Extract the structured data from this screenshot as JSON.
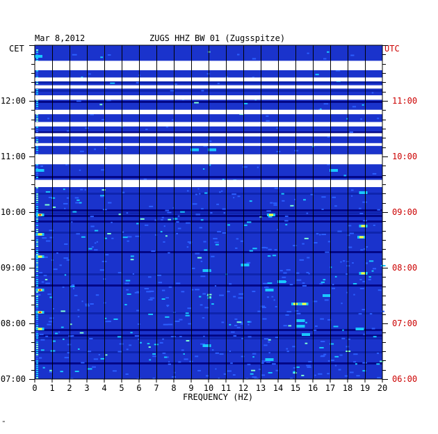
{
  "header": {
    "date": "Mar 8,2012",
    "station": "ZUGS HHZ BW 01 (Zugsspitze)"
  },
  "footer_mark": "\"",
  "chart_data": {
    "type": "heatmap",
    "title": "ZUGS HHZ BW 01 (Zugsspitze)",
    "subtitle": "Mar 8,2012",
    "xlabel": "FREQUENCY (HZ)",
    "left_axis_label": "CET",
    "right_axis_label": "UTC",
    "xlim": [
      0,
      20
    ],
    "x_ticks": [
      "0",
      "1",
      "2",
      "3",
      "4",
      "5",
      "6",
      "7",
      "8",
      "9",
      "10",
      "11",
      "12",
      "13",
      "14",
      "15",
      "16",
      "17",
      "18",
      "19",
      "20"
    ],
    "time_range_cet_hours": [
      7.0,
      13.0
    ],
    "cet_ticks": [
      {
        "t": 7,
        "label": "07:00"
      },
      {
        "t": 8,
        "label": "08:00"
      },
      {
        "t": 9,
        "label": "09:00"
      },
      {
        "t": 10,
        "label": "10:00"
      },
      {
        "t": 11,
        "label": "11:00"
      },
      {
        "t": 12,
        "label": "12:00"
      }
    ],
    "utc_ticks": [
      {
        "t": 7,
        "label": "06:00"
      },
      {
        "t": 8,
        "label": "07:00"
      },
      {
        "t": 9,
        "label": "08:00"
      },
      {
        "t": 10,
        "label": "09:00"
      },
      {
        "t": 11,
        "label": "10:00"
      },
      {
        "t": 12,
        "label": "11:00"
      }
    ],
    "data_gaps_cet_hours": [
      [
        10.45,
        10.58
      ],
      [
        10.86,
        11.04
      ],
      [
        11.19,
        11.24
      ],
      [
        11.36,
        11.42
      ],
      [
        11.54,
        11.62
      ],
      [
        11.76,
        11.84
      ],
      [
        12.02,
        12.1
      ],
      [
        12.22,
        12.28
      ],
      [
        12.35,
        12.42
      ],
      [
        12.55,
        12.72
      ]
    ],
    "colors": {
      "background_power": "#1a33cc",
      "dark_row": "#00007a",
      "low": "#2b5fff",
      "mid": "#19c8ff",
      "high": "#ffff33",
      "peak": "#ff3300",
      "gap": "#ffffff",
      "utc_label": "#cc0000"
    },
    "hotspots": [
      {
        "f": 15.2,
        "t": 8.35,
        "level": 4
      },
      {
        "f": 15.0,
        "t": 8.35,
        "level": 3
      },
      {
        "f": 15.5,
        "t": 8.35,
        "level": 3
      },
      {
        "f": 18.9,
        "t": 8.9,
        "level": 3
      },
      {
        "f": 18.8,
        "t": 9.55,
        "level": 3
      },
      {
        "f": 18.9,
        "t": 9.75,
        "level": 3
      },
      {
        "f": 13.6,
        "t": 9.95,
        "level": 3
      },
      {
        "f": 13.5,
        "t": 8.6,
        "level": 2
      },
      {
        "f": 9.9,
        "t": 7.6,
        "level": 2
      },
      {
        "f": 9.9,
        "t": 8.95,
        "level": 2
      },
      {
        "f": 15.3,
        "t": 8.05,
        "level": 2
      },
      {
        "f": 15.3,
        "t": 7.95,
        "level": 2
      },
      {
        "f": 15.6,
        "t": 7.8,
        "level": 2
      },
      {
        "f": 18.7,
        "t": 7.9,
        "level": 2
      },
      {
        "f": 18.9,
        "t": 10.35,
        "level": 2
      },
      {
        "f": 14.2,
        "t": 8.75,
        "level": 2
      },
      {
        "f": 13.5,
        "t": 7.35,
        "level": 2
      },
      {
        "f": 9.2,
        "t": 11.12,
        "level": 2
      },
      {
        "f": 10.2,
        "t": 11.12,
        "level": 2
      },
      {
        "f": 0.3,
        "t": 8.2,
        "level": 4
      },
      {
        "f": 0.3,
        "t": 8.6,
        "level": 4
      },
      {
        "f": 0.3,
        "t": 9.95,
        "level": 4
      },
      {
        "f": 0.3,
        "t": 7.9,
        "level": 3
      },
      {
        "f": 0.3,
        "t": 9.2,
        "level": 3
      },
      {
        "f": 0.3,
        "t": 9.6,
        "level": 3
      },
      {
        "f": 0.3,
        "t": 10.75,
        "level": 2
      },
      {
        "f": 0.2,
        "t": 12.8,
        "level": 2
      },
      {
        "f": 17.2,
        "t": 10.75,
        "level": 2
      },
      {
        "f": 16.8,
        "t": 8.5,
        "level": 2
      },
      {
        "f": 12.1,
        "t": 9.05,
        "level": 2
      }
    ]
  }
}
